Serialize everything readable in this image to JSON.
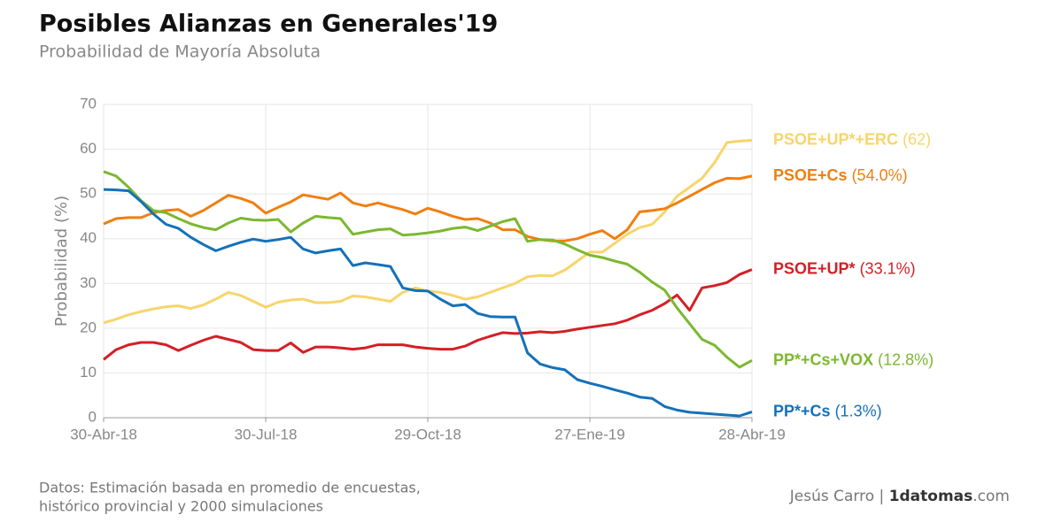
{
  "chart_data": {
    "type": "line",
    "title": "Posibles Alianzas en Generales'19",
    "subtitle": "Probabilidad de Mayoría Absoluta",
    "y_label": "Probabilidad (%)",
    "source": [
      "Datos: Estimación basada en promedio de encuestas,",
      "histórico provincial y 2000 simulaciones"
    ],
    "credit": {
      "author": "Jesús Carro",
      "separator": "|",
      "site": "1datomas",
      "site_suffix": ".com"
    },
    "categories": [
      "30-Abr-18",
      null,
      null,
      null,
      null,
      null,
      null,
      null,
      null,
      null,
      null,
      null,
      null,
      "30-Jul-18",
      null,
      null,
      null,
      null,
      null,
      null,
      null,
      null,
      null,
      null,
      null,
      null,
      "29-Oct-18",
      null,
      null,
      null,
      null,
      null,
      null,
      null,
      null,
      null,
      null,
      null,
      null,
      "27-Ene-19",
      null,
      null,
      null,
      null,
      null,
      null,
      null,
      null,
      null,
      null,
      null,
      null,
      "28-Abr-19"
    ],
    "ylim": [
      0,
      70
    ],
    "yticks": [
      0,
      10,
      20,
      30,
      40,
      50,
      60,
      70
    ],
    "grid": true,
    "series": [
      {
        "name": "PSOE+UP*+ERC",
        "color": "#f7d56b",
        "values": [
          21.2,
          22,
          23,
          23.7,
          24.3,
          24.8,
          25,
          24.4,
          25.2,
          26.5,
          28,
          27.3,
          26,
          24.7,
          25.8,
          26.3,
          26.5,
          25.7,
          25.7,
          26,
          27.2,
          27,
          26.5,
          26,
          28,
          29,
          28.3,
          28,
          27.3,
          26.5,
          27,
          28,
          29,
          30,
          31.5,
          31.8,
          31.7,
          33,
          35,
          37,
          37,
          39,
          41,
          42.5,
          43.2,
          46,
          49.5,
          51.5,
          53.5,
          57,
          61.5,
          61.8,
          62
        ],
        "value_labels": [
          null,
          null,
          null,
          null,
          null,
          null,
          null,
          null,
          null,
          null,
          null,
          null,
          null,
          null,
          null,
          null,
          null,
          null,
          null,
          null,
          null,
          null,
          null,
          null,
          null,
          null,
          null,
          null,
          null,
          null,
          null,
          null,
          null,
          null,
          null,
          null,
          null,
          null,
          null,
          null,
          null,
          null,
          null,
          null,
          null,
          null,
          null,
          null,
          null,
          null,
          null,
          null,
          "(62)"
        ]
      },
      {
        "name": "PSOE+Cs",
        "color": "#f07f10",
        "values": [
          43.3,
          44.5,
          44.7,
          44.7,
          45.8,
          46.3,
          46.5,
          45,
          46.3,
          48,
          49.7,
          49,
          48,
          45.7,
          47,
          48.2,
          49.8,
          49.3,
          48.8,
          50.2,
          48,
          47.3,
          48,
          47.2,
          46.5,
          45.5,
          46.8,
          46,
          45,
          44.3,
          44.5,
          43.5,
          42,
          42,
          40.5,
          39.8,
          39.5,
          39.5,
          40,
          41,
          41.8,
          40,
          42,
          46,
          46.3,
          46.7,
          48,
          49.5,
          51,
          52.5,
          53.5,
          53.4,
          54.0
        ],
        "value_labels": [
          null,
          null,
          null,
          null,
          null,
          null,
          null,
          null,
          null,
          null,
          null,
          null,
          null,
          null,
          null,
          null,
          null,
          null,
          null,
          null,
          null,
          null,
          null,
          null,
          null,
          null,
          null,
          null,
          null,
          null,
          null,
          null,
          null,
          null,
          null,
          null,
          null,
          null,
          null,
          null,
          null,
          null,
          null,
          null,
          null,
          null,
          null,
          null,
          null,
          null,
          null,
          null,
          "(54.0%)"
        ]
      },
      {
        "name": "PSOE+UP*",
        "color": "#d41f26",
        "values": [
          13,
          15.2,
          16.3,
          16.8,
          16.8,
          16.3,
          15,
          16.2,
          17.3,
          18.2,
          17.5,
          16.8,
          15.2,
          15,
          15,
          16.7,
          14.6,
          15.8,
          15.8,
          15.6,
          15.3,
          15.6,
          16.3,
          16.3,
          16.3,
          15.8,
          15.5,
          15.3,
          15.3,
          16,
          17.3,
          18.2,
          19,
          18.8,
          18.9,
          19.2,
          19,
          19.3,
          19.8,
          20.2,
          20.6,
          21,
          21.8,
          23,
          24,
          25.5,
          27.4,
          24,
          29,
          29.5,
          30.2,
          32,
          33.1
        ],
        "value_labels": [
          null,
          null,
          null,
          null,
          null,
          null,
          null,
          null,
          null,
          null,
          null,
          null,
          null,
          null,
          null,
          null,
          null,
          null,
          null,
          null,
          null,
          null,
          null,
          null,
          null,
          null,
          null,
          null,
          null,
          null,
          null,
          null,
          null,
          null,
          null,
          null,
          null,
          null,
          null,
          null,
          null,
          null,
          null,
          null,
          null,
          null,
          null,
          null,
          null,
          null,
          null,
          null,
          "(33.1%)"
        ]
      },
      {
        "name": "PP*+Cs+VOX",
        "color": "#7cb82f",
        "values": [
          55,
          54,
          51.5,
          48.5,
          46.3,
          45.8,
          44.5,
          43.3,
          42.5,
          42,
          43.5,
          44.6,
          44.2,
          44.1,
          44.3,
          41.5,
          43.5,
          45,
          44.7,
          44.5,
          41,
          41.5,
          42,
          42.2,
          40.8,
          41,
          41.3,
          41.7,
          42.3,
          42.6,
          41.8,
          42.8,
          43.8,
          44.5,
          39.4,
          39.8,
          39.7,
          38.8,
          37.5,
          36.3,
          35.8,
          35,
          34.3,
          32.5,
          30.3,
          28.5,
          24.5,
          21,
          17.5,
          16.2,
          13.5,
          11.3,
          12.8
        ],
        "value_labels": [
          null,
          null,
          null,
          null,
          null,
          null,
          null,
          null,
          null,
          null,
          null,
          null,
          null,
          null,
          null,
          null,
          null,
          null,
          null,
          null,
          null,
          null,
          null,
          null,
          null,
          null,
          null,
          null,
          null,
          null,
          null,
          null,
          null,
          null,
          null,
          null,
          null,
          null,
          null,
          null,
          null,
          null,
          null,
          null,
          null,
          null,
          null,
          null,
          null,
          null,
          null,
          null,
          "(12.8%)"
        ]
      },
      {
        "name": "PP*+Cs",
        "color": "#1471b8",
        "values": [
          51,
          50.9,
          50.7,
          48.3,
          45.5,
          43.2,
          42.3,
          40.3,
          38.7,
          37.3,
          38.3,
          39.2,
          39.9,
          39.4,
          39.8,
          40.3,
          37.7,
          36.8,
          37.3,
          37.7,
          34,
          34.6,
          34.2,
          33.8,
          29,
          28.4,
          28.3,
          26.5,
          25,
          25.3,
          23.3,
          22.6,
          22.5,
          22.5,
          14.5,
          12,
          11.2,
          10.7,
          8.5,
          7.7,
          7,
          6.2,
          5.5,
          4.6,
          4.3,
          2.5,
          1.7,
          1.2,
          1,
          0.8,
          0.6,
          0.4,
          1.3
        ],
        "value_labels": [
          null,
          null,
          null,
          null,
          null,
          null,
          null,
          null,
          null,
          null,
          null,
          null,
          null,
          null,
          null,
          null,
          null,
          null,
          null,
          null,
          null,
          null,
          null,
          null,
          null,
          null,
          null,
          null,
          null,
          null,
          null,
          null,
          null,
          null,
          null,
          null,
          null,
          null,
          null,
          null,
          null,
          null,
          null,
          null,
          null,
          null,
          null,
          null,
          null,
          null,
          null,
          null,
          "(1.3%)"
        ]
      }
    ]
  }
}
